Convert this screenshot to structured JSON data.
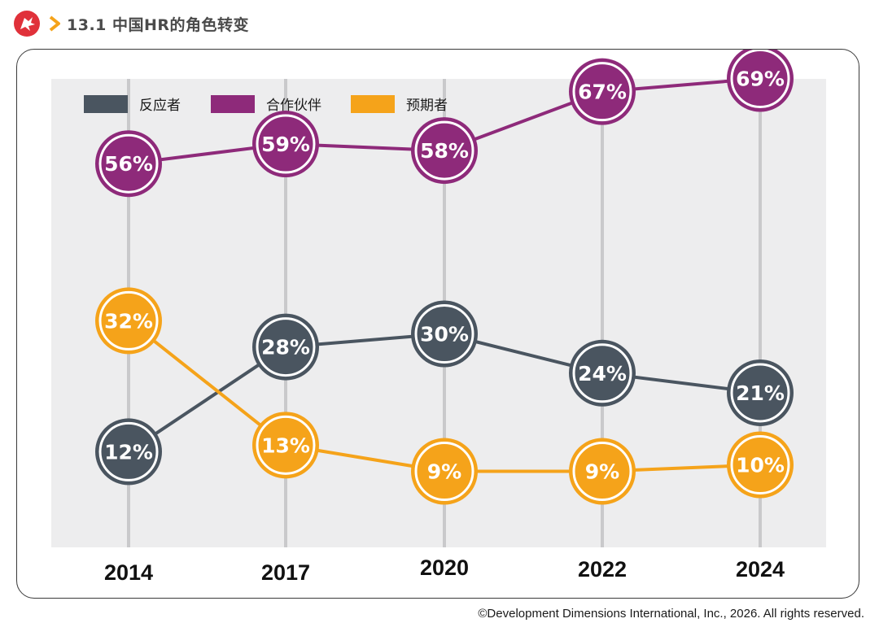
{
  "header": {
    "title": "13.1 中国HR的角色转变",
    "logo_icon": "ddi-dragon-logo-icon",
    "arrow_icon": "chevron-right-icon",
    "accent_color": "#f5a31a",
    "logo_color": "#e0313a"
  },
  "footer": {
    "copyright": "©Development Dimensions International, Inc., 2026. All rights reserved."
  },
  "chart_data": {
    "type": "line",
    "title": "",
    "xlabel": "",
    "ylabel": "",
    "categories": [
      "2014",
      "2017",
      "2020",
      "2022",
      "2024"
    ],
    "ylim": [
      0,
      80
    ],
    "grid": false,
    "legend_position": "top-left",
    "series": [
      {
        "name": "反应者",
        "color": "#4a5560",
        "values": [
          12,
          28,
          30,
          24,
          21
        ],
        "labels": [
          "12%",
          "28%",
          "30%",
          "24%",
          "21%"
        ]
      },
      {
        "name": "合作伙伴",
        "color": "#8e2a7a",
        "values": [
          56,
          59,
          58,
          67,
          69
        ],
        "labels": [
          "56%",
          "59%",
          "58%",
          "67%",
          "69%"
        ]
      },
      {
        "name": "预期者",
        "color": "#f5a31a",
        "values": [
          32,
          13,
          9,
          9,
          10
        ],
        "labels": [
          "32%",
          "13%",
          "9%",
          "9%",
          "10%"
        ]
      }
    ]
  }
}
